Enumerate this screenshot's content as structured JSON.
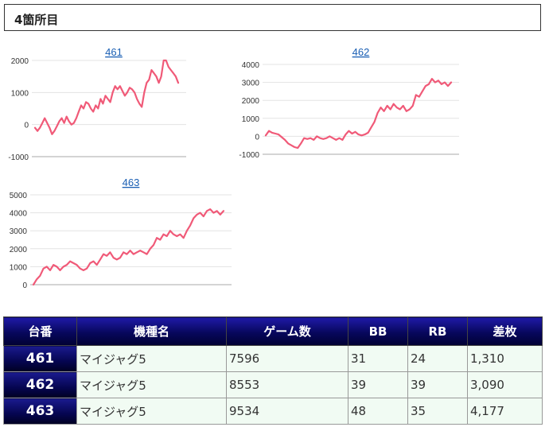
{
  "header": {
    "title": "4箇所目"
  },
  "chart_data": [
    {
      "type": "line",
      "title": "461",
      "yticks": [
        2000,
        1000,
        0,
        -1000
      ],
      "ylim": [
        -1000,
        2000
      ],
      "values": [
        -100,
        -200,
        -100,
        50,
        200,
        50,
        -100,
        -300,
        -200,
        -50,
        100,
        200,
        50,
        250,
        100,
        0,
        50,
        200,
        400,
        600,
        500,
        700,
        650,
        500,
        400,
        600,
        500,
        800,
        650,
        900,
        800,
        700,
        1000,
        1200,
        1100,
        1200,
        1050,
        900,
        1000,
        1150,
        1100,
        1000,
        800,
        650,
        550,
        1000,
        1300,
        1400,
        1700,
        1600,
        1500,
        1300,
        1500,
        2000,
        2000,
        1800,
        1700,
        1600,
        1500,
        1300
      ],
      "color": "#f05a78"
    },
    {
      "type": "line",
      "title": "462",
      "yticks": [
        4000,
        3000,
        2000,
        1000,
        0,
        -1000
      ],
      "ylim": [
        -1000,
        4000
      ],
      "values": [
        50,
        300,
        200,
        150,
        100,
        -50,
        -200,
        -400,
        -500,
        -600,
        -650,
        -400,
        -100,
        -150,
        -100,
        -200,
        0,
        -100,
        -150,
        -100,
        0,
        -100,
        -200,
        -100,
        -200,
        100,
        300,
        150,
        250,
        100,
        50,
        100,
        200,
        500,
        800,
        1300,
        1600,
        1400,
        1700,
        1500,
        1800,
        1600,
        1500,
        1700,
        1400,
        1500,
        1700,
        2300,
        2200,
        2500,
        2800,
        2900,
        3200,
        3000,
        3100,
        2900,
        3000,
        2800,
        3000
      ],
      "color": "#f05a78"
    },
    {
      "type": "line",
      "title": "463",
      "yticks": [
        5000,
        4000,
        3000,
        2000,
        1000,
        0
      ],
      "ylim": [
        0,
        5000
      ],
      "values": [
        0,
        300,
        500,
        900,
        1000,
        800,
        1100,
        1000,
        800,
        1000,
        1100,
        1300,
        1200,
        1100,
        900,
        800,
        900,
        1200,
        1300,
        1100,
        1400,
        1700,
        1600,
        1800,
        1500,
        1400,
        1500,
        1800,
        1700,
        1900,
        1700,
        1800,
        1900,
        1800,
        1700,
        2000,
        2200,
        2600,
        2500,
        2800,
        2700,
        3000,
        2800,
        2700,
        2800,
        2600,
        3000,
        3300,
        3700,
        3900,
        4000,
        3800,
        4100,
        4200,
        4000,
        4100,
        3900,
        4100
      ],
      "color": "#f05a78"
    }
  ],
  "table": {
    "headers": [
      "台番",
      "機種名",
      "ゲーム数",
      "BB",
      "RB",
      "差枚"
    ],
    "rows": [
      [
        "461",
        "マイジャグ5",
        "7596",
        "31",
        "24",
        "1,310"
      ],
      [
        "462",
        "マイジャグ5",
        "8553",
        "39",
        "39",
        "3,090"
      ],
      [
        "463",
        "マイジャグ5",
        "9534",
        "48",
        "35",
        "4,177"
      ]
    ]
  }
}
